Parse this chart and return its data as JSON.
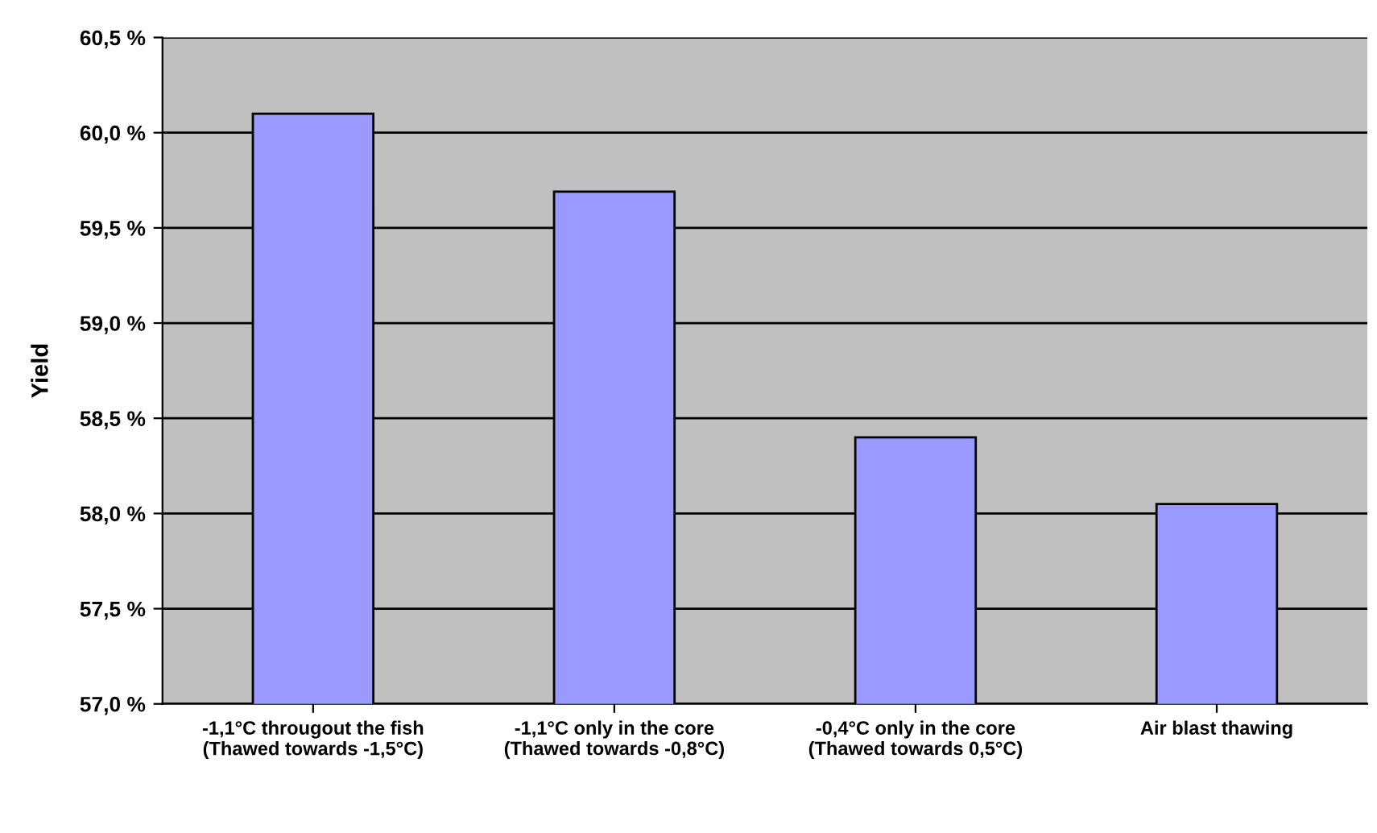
{
  "chart_data": {
    "type": "bar",
    "ylabel": "Yield",
    "categories": [
      "-1,1°C througout the fish\n(Thawed towards -1,5°C)",
      "-1,1°C only in the core\n(Thawed towards -0,8°C)",
      "-0,4°C only in the core\n(Thawed towards 0,5°C)",
      "Air blast thawing"
    ],
    "values": [
      60.1,
      59.69,
      58.4,
      58.05
    ],
    "color": "#9999ff",
    "ylim": [
      57.0,
      60.5
    ],
    "yticks": [
      {
        "value": 57.0,
        "label": "57,0 %"
      },
      {
        "value": 57.5,
        "label": "57,5 %"
      },
      {
        "value": 58.0,
        "label": "58,0 %"
      },
      {
        "value": 58.5,
        "label": "58,5 %"
      },
      {
        "value": 59.0,
        "label": "59,0 %"
      },
      {
        "value": 59.5,
        "label": "59,5 %"
      },
      {
        "value": 60.0,
        "label": "60,0 %"
      },
      {
        "value": 60.5,
        "label": "60,5 %"
      }
    ],
    "grid": "y"
  }
}
